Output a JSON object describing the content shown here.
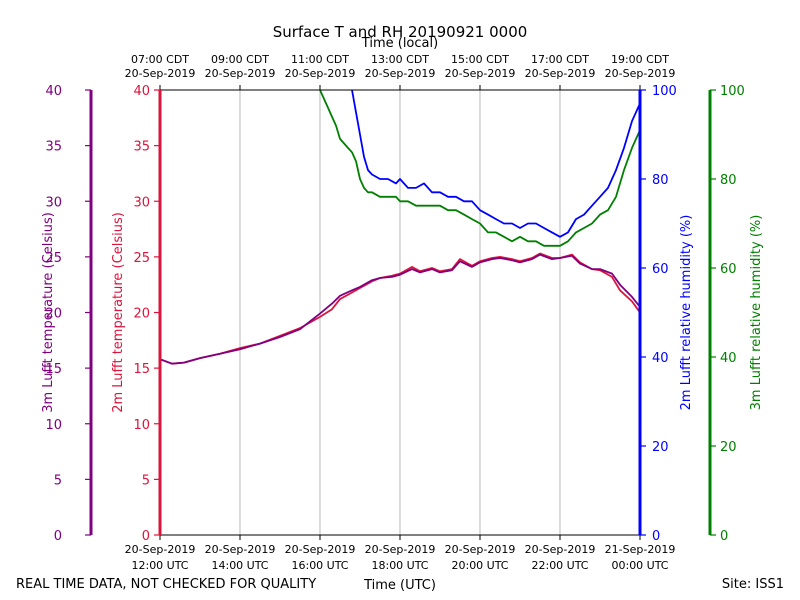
{
  "chart_data": {
    "type": "line",
    "title": "Surface T and RH 20190921 0000",
    "top_axis_label": "Time (local)",
    "xlabel": "Time (UTC)",
    "footer_left": "REAL TIME DATA, NOT CHECKED FOR QUALITY",
    "footer_right": "Site: ISS1",
    "x_range_hours_utc": [
      12,
      24
    ],
    "x_ticks": [
      {
        "hour": 12,
        "utc_date": "20-Sep-2019",
        "utc_time": "12:00 UTC",
        "local_time": "07:00 CDT",
        "local_date": "20-Sep-2019"
      },
      {
        "hour": 14,
        "utc_date": "20-Sep-2019",
        "utc_time": "14:00 UTC",
        "local_time": "09:00 CDT",
        "local_date": "20-Sep-2019"
      },
      {
        "hour": 16,
        "utc_date": "20-Sep-2019",
        "utc_time": "16:00 UTC",
        "local_time": "11:00 CDT",
        "local_date": "20-Sep-2019"
      },
      {
        "hour": 18,
        "utc_date": "20-Sep-2019",
        "utc_time": "18:00 UTC",
        "local_time": "13:00 CDT",
        "local_date": "20-Sep-2019"
      },
      {
        "hour": 20,
        "utc_date": "20-Sep-2019",
        "utc_time": "20:00 UTC",
        "local_time": "15:00 CDT",
        "local_date": "20-Sep-2019"
      },
      {
        "hour": 22,
        "utc_date": "20-Sep-2019",
        "utc_time": "22:00 UTC",
        "local_time": "17:00 CDT",
        "local_date": "20-Sep-2019"
      },
      {
        "hour": 24,
        "utc_date": "21-Sep-2019",
        "utc_time": "00:00 UTC",
        "local_time": "19:00 CDT",
        "local_date": "20-Sep-2019"
      }
    ],
    "grid": "vertical",
    "axes": [
      {
        "id": "t3",
        "label": "3m Lufft temperature (Celsius)",
        "side": "left-outer",
        "range": [
          0,
          40
        ],
        "ticks": [
          0,
          5,
          10,
          15,
          20,
          25,
          30,
          35,
          40
        ],
        "color": "#800080"
      },
      {
        "id": "t2",
        "label": "2m Lufft temperature (Celsius)",
        "side": "left-inner",
        "range": [
          0,
          40
        ],
        "ticks": [
          0,
          5,
          10,
          15,
          20,
          25,
          30,
          35,
          40
        ],
        "color": "#dc143c"
      },
      {
        "id": "rh2",
        "label": "2m Lufft relative humidity (%)",
        "side": "right-inner",
        "range": [
          0,
          100
        ],
        "ticks": [
          0,
          20,
          40,
          60,
          80,
          100
        ],
        "color": "#0000ff"
      },
      {
        "id": "rh3",
        "label": "3m Lufft relative humidity (%)",
        "side": "right-outer",
        "range": [
          0,
          100
        ],
        "ticks": [
          0,
          20,
          40,
          60,
          80,
          100
        ],
        "color": "#008000"
      }
    ],
    "series": [
      {
        "axis": "t2",
        "color": "#dc143c",
        "x": [
          12.0,
          12.3,
          12.6,
          13.0,
          13.5,
          14.0,
          14.5,
          15.0,
          15.5,
          16.0,
          16.3,
          16.5,
          16.8,
          17.0,
          17.3,
          17.5,
          17.8,
          18.0,
          18.3,
          18.5,
          18.8,
          19.0,
          19.3,
          19.5,
          19.8,
          20.0,
          20.3,
          20.5,
          20.8,
          21.0,
          21.3,
          21.5,
          21.8,
          22.0,
          22.3,
          22.5,
          22.8,
          23.0,
          23.3,
          23.5,
          23.8,
          24.0
        ],
        "y": [
          15.8,
          15.4,
          15.5,
          15.9,
          16.3,
          16.8,
          17.2,
          17.9,
          18.6,
          19.6,
          20.3,
          21.2,
          21.8,
          22.2,
          22.8,
          23.1,
          23.3,
          23.5,
          24.1,
          23.7,
          24.0,
          23.7,
          23.9,
          24.8,
          24.2,
          24.6,
          24.9,
          25.0,
          24.8,
          24.6,
          24.9,
          25.3,
          24.9,
          24.9,
          25.2,
          24.5,
          23.9,
          23.8,
          23.2,
          22.0,
          21.0,
          20.0
        ]
      },
      {
        "axis": "t3",
        "color": "#800080",
        "x": [
          12.0,
          12.3,
          12.6,
          13.0,
          13.5,
          14.0,
          14.5,
          15.0,
          15.5,
          16.0,
          16.3,
          16.5,
          16.8,
          17.0,
          17.3,
          17.5,
          17.8,
          18.0,
          18.3,
          18.5,
          18.8,
          19.0,
          19.3,
          19.5,
          19.8,
          20.0,
          20.3,
          20.5,
          20.8,
          21.0,
          21.3,
          21.5,
          21.8,
          22.0,
          22.3,
          22.5,
          22.8,
          23.0,
          23.3,
          23.5,
          23.8,
          24.0
        ],
        "y": [
          15.8,
          15.4,
          15.5,
          15.9,
          16.3,
          16.7,
          17.2,
          17.8,
          18.5,
          19.9,
          20.8,
          21.5,
          22.0,
          22.3,
          22.9,
          23.1,
          23.2,
          23.4,
          23.9,
          23.6,
          23.9,
          23.6,
          23.8,
          24.6,
          24.1,
          24.5,
          24.8,
          24.9,
          24.7,
          24.5,
          24.8,
          25.2,
          24.8,
          24.9,
          25.1,
          24.4,
          23.9,
          23.9,
          23.5,
          22.5,
          21.4,
          20.5
        ]
      },
      {
        "axis": "rh2",
        "color": "#0000ff",
        "x": [
          16.8,
          16.9,
          17.0,
          17.1,
          17.2,
          17.3,
          17.5,
          17.7,
          17.9,
          18.0,
          18.2,
          18.4,
          18.6,
          18.8,
          19.0,
          19.2,
          19.4,
          19.6,
          19.8,
          20.0,
          20.2,
          20.4,
          20.6,
          20.8,
          21.0,
          21.2,
          21.4,
          21.6,
          21.8,
          22.0,
          22.2,
          22.4,
          22.6,
          22.8,
          23.0,
          23.2,
          23.4,
          23.6,
          23.8,
          24.0
        ],
        "y": [
          100,
          95,
          90,
          85,
          82,
          81,
          80,
          80,
          79,
          80,
          78,
          78,
          79,
          77,
          77,
          76,
          76,
          75,
          75,
          73,
          72,
          71,
          70,
          70,
          69,
          70,
          70,
          69,
          68,
          67,
          68,
          71,
          72,
          74,
          76,
          78,
          82,
          87,
          93,
          97
        ]
      },
      {
        "axis": "rh3",
        "color": "#008000",
        "x": [
          16.0,
          16.1,
          16.2,
          16.3,
          16.4,
          16.5,
          16.6,
          16.7,
          16.8,
          16.9,
          17.0,
          17.1,
          17.2,
          17.3,
          17.5,
          17.7,
          17.9,
          18.0,
          18.2,
          18.4,
          18.6,
          18.8,
          19.0,
          19.2,
          19.4,
          19.6,
          19.8,
          20.0,
          20.2,
          20.4,
          20.6,
          20.8,
          21.0,
          21.2,
          21.4,
          21.6,
          21.8,
          22.0,
          22.2,
          22.4,
          22.6,
          22.8,
          23.0,
          23.2,
          23.4,
          23.6,
          23.8,
          24.0
        ],
        "y": [
          100,
          98,
          96,
          94,
          92,
          89,
          88,
          87,
          86,
          84,
          80,
          78,
          77,
          77,
          76,
          76,
          76,
          75,
          75,
          74,
          74,
          74,
          74,
          73,
          73,
          72,
          71,
          70,
          68,
          68,
          67,
          66,
          67,
          66,
          66,
          65,
          65,
          65,
          66,
          68,
          69,
          70,
          72,
          73,
          76,
          82,
          87,
          91
        ]
      }
    ]
  }
}
